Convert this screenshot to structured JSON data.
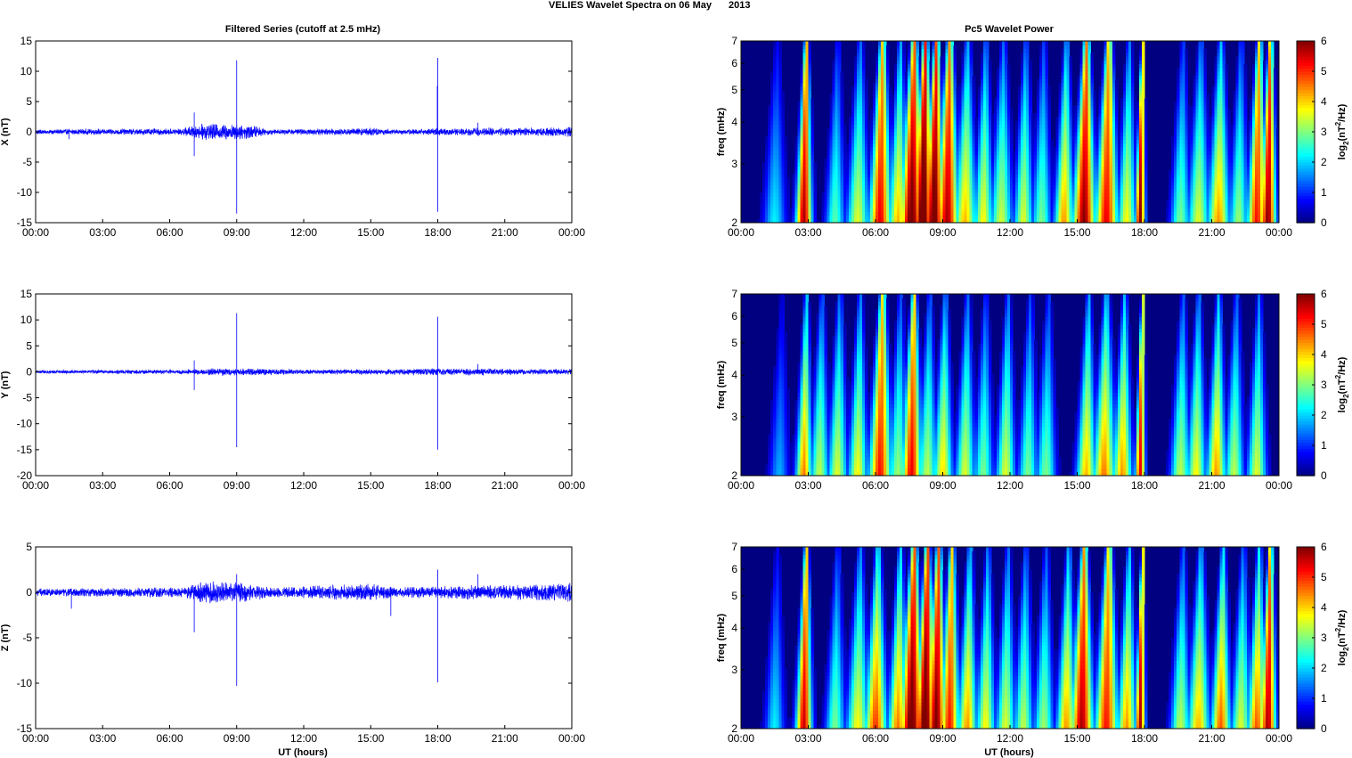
{
  "figure": {
    "title_left": "VELIES Wavelet Spectra on 06 May",
    "title_right": "2013",
    "left_column_title": "Filtered Series (cutoff at 2.5 mHz)",
    "right_column_title": "Pc5 Wavelet Power",
    "xlabel": "UT (hours)",
    "colorbar_label_prefix": "log",
    "colorbar_label_sub": "2",
    "colorbar_label_mid": "(nT",
    "colorbar_label_sup": "2",
    "colorbar_label_suffix": "/Hz)",
    "freq_ylabel": "freq (mHz)"
  },
  "chart_data": [
    {
      "id": "series-x",
      "type": "line",
      "ylabel": "X (nT)",
      "xlim": [
        0,
        24
      ],
      "ylim": [
        -15,
        15
      ],
      "yticks": [
        -15,
        -10,
        -5,
        0,
        5,
        10,
        15
      ],
      "xticks": [
        "00:00",
        "03:00",
        "06:00",
        "09:00",
        "12:00",
        "15:00",
        "18:00",
        "21:00",
        "00:00"
      ],
      "color": "#0000ff",
      "noise_envelope": [
        [
          0,
          0.3
        ],
        [
          6.5,
          0.4
        ],
        [
          7.5,
          1.0
        ],
        [
          9.5,
          0.9
        ],
        [
          10.5,
          0.3
        ],
        [
          14,
          0.4
        ],
        [
          15,
          0.5
        ],
        [
          16,
          0.3
        ],
        [
          19.5,
          0.5
        ],
        [
          22,
          0.5
        ],
        [
          24,
          0.6
        ]
      ],
      "spikes": [
        [
          7.1,
          3.2,
          -4.0
        ],
        [
          9.0,
          11.8,
          -13.5
        ],
        [
          18.0,
          12.2,
          -13.2
        ],
        [
          17.98,
          7.6,
          0
        ],
        [
          19.8,
          1.5,
          -0.5
        ],
        [
          1.5,
          0.5,
          -1.2
        ]
      ]
    },
    {
      "id": "series-y",
      "type": "line",
      "ylabel": "Y (nT)",
      "xlim": [
        0,
        24
      ],
      "ylim": [
        -20,
        15
      ],
      "yticks": [
        -20,
        -15,
        -10,
        -5,
        0,
        5,
        10,
        15
      ],
      "xticks": [
        "00:00",
        "03:00",
        "06:00",
        "09:00",
        "12:00",
        "15:00",
        "18:00",
        "21:00",
        "00:00"
      ],
      "color": "#0000ff",
      "noise_envelope": [
        [
          0,
          0.25
        ],
        [
          6.5,
          0.3
        ],
        [
          8,
          0.5
        ],
        [
          9.5,
          0.5
        ],
        [
          12,
          0.3
        ],
        [
          19.5,
          0.5
        ],
        [
          22,
          0.4
        ],
        [
          24,
          0.4
        ]
      ],
      "spikes": [
        [
          7.1,
          2.2,
          -3.5
        ],
        [
          9.0,
          11.3,
          -14.5
        ],
        [
          18.0,
          10.6,
          -15.0
        ],
        [
          19.8,
          1.5,
          -0.4
        ]
      ]
    },
    {
      "id": "series-z",
      "type": "line",
      "ylabel": "Z (nT)",
      "xlim": [
        0,
        24
      ],
      "ylim": [
        -15,
        5
      ],
      "yticks": [
        -15,
        -10,
        -5,
        0,
        5
      ],
      "xticks": [
        "00:00",
        "03:00",
        "06:00",
        "09:00",
        "12:00",
        "15:00",
        "18:00",
        "21:00",
        "00:00"
      ],
      "color": "#0000ff",
      "noise_envelope": [
        [
          0,
          0.3
        ],
        [
          6.5,
          0.4
        ],
        [
          7.5,
          0.9
        ],
        [
          9.5,
          0.8
        ],
        [
          10.5,
          0.4
        ],
        [
          15,
          0.7
        ],
        [
          16,
          0.4
        ],
        [
          19.5,
          0.6
        ],
        [
          22,
          0.6
        ],
        [
          24,
          0.8
        ]
      ],
      "spikes": [
        [
          7.1,
          0.5,
          -4.4
        ],
        [
          9.0,
          2.0,
          -10.3
        ],
        [
          18.0,
          2.5,
          -9.9
        ],
        [
          1.6,
          0.4,
          -1.8
        ],
        [
          15.9,
          0.6,
          -2.6
        ],
        [
          19.8,
          2.0,
          -0.5
        ]
      ]
    },
    {
      "id": "wavelet-x",
      "type": "heatmap",
      "ylabel": "freq (mHz)",
      "xlim": [
        0,
        24
      ],
      "ylim": [
        2,
        7
      ],
      "yscale": "log",
      "yticks": [
        2,
        3,
        4,
        5,
        6,
        7
      ],
      "xticks": [
        "00:00",
        "03:00",
        "06:00",
        "09:00",
        "12:00",
        "15:00",
        "18:00",
        "21:00",
        "00:00"
      ],
      "colormap": "jet",
      "clim": [
        0,
        6
      ],
      "colorbar_ticks": [
        0,
        1,
        2,
        3,
        4,
        5,
        6
      ],
      "bursts": [
        [
          1.5,
          0.35,
          2.2
        ],
        [
          2.8,
          0.25,
          5.8
        ],
        [
          4.2,
          0.3,
          2.8
        ],
        [
          5.2,
          0.35,
          3.6
        ],
        [
          6.2,
          0.35,
          5.4
        ],
        [
          7.0,
          0.3,
          4.2
        ],
        [
          7.6,
          0.35,
          6.3
        ],
        [
          8.1,
          0.3,
          6.8
        ],
        [
          8.6,
          0.3,
          6.5
        ],
        [
          9.2,
          0.35,
          5.8
        ],
        [
          10.0,
          0.35,
          4.2
        ],
        [
          10.8,
          0.3,
          3.8
        ],
        [
          11.6,
          0.35,
          3.5
        ],
        [
          12.6,
          0.3,
          3.6
        ],
        [
          13.4,
          0.3,
          3.0
        ],
        [
          14.4,
          0.3,
          4.4
        ],
        [
          15.3,
          0.35,
          6.0
        ],
        [
          16.3,
          0.35,
          5.4
        ],
        [
          17.2,
          0.3,
          3.8
        ],
        [
          17.8,
          0.15,
          6.0
        ],
        [
          19.6,
          0.3,
          3.0
        ],
        [
          20.4,
          0.35,
          3.6
        ],
        [
          21.3,
          0.35,
          4.4
        ],
        [
          22.2,
          0.3,
          3.2
        ],
        [
          23.0,
          0.3,
          5.2
        ],
        [
          23.5,
          0.25,
          6.0
        ]
      ]
    },
    {
      "id": "wavelet-y",
      "type": "heatmap",
      "ylabel": "freq (mHz)",
      "xlim": [
        0,
        24
      ],
      "ylim": [
        2,
        7
      ],
      "yscale": "log",
      "yticks": [
        2,
        3,
        4,
        5,
        6,
        7
      ],
      "xticks": [
        "00:00",
        "03:00",
        "06:00",
        "09:00",
        "12:00",
        "15:00",
        "18:00",
        "21:00",
        "00:00"
      ],
      "colormap": "jet",
      "clim": [
        0,
        6
      ],
      "colorbar_ticks": [
        0,
        1,
        2,
        3,
        4,
        5,
        6
      ],
      "bursts": [
        [
          1.7,
          0.3,
          1.8
        ],
        [
          2.8,
          0.25,
          4.6
        ],
        [
          3.5,
          0.3,
          3.4
        ],
        [
          4.3,
          0.3,
          3.6
        ],
        [
          5.2,
          0.3,
          3.8
        ],
        [
          6.2,
          0.35,
          5.2
        ],
        [
          7.0,
          0.3,
          3.2
        ],
        [
          7.6,
          0.3,
          5.4
        ],
        [
          8.3,
          0.3,
          3.4
        ],
        [
          9.0,
          0.3,
          4.0
        ],
        [
          10.0,
          0.3,
          3.6
        ],
        [
          10.8,
          0.3,
          3.0
        ],
        [
          11.8,
          0.3,
          3.6
        ],
        [
          12.8,
          0.3,
          3.0
        ],
        [
          13.6,
          0.3,
          3.0
        ],
        [
          15.4,
          0.3,
          4.2
        ],
        [
          16.2,
          0.35,
          4.6
        ],
        [
          17.0,
          0.3,
          4.4
        ],
        [
          17.8,
          0.15,
          5.4
        ],
        [
          19.6,
          0.3,
          3.4
        ],
        [
          20.3,
          0.3,
          3.8
        ],
        [
          21.2,
          0.3,
          4.4
        ],
        [
          22.0,
          0.3,
          3.4
        ],
        [
          23.0,
          0.3,
          3.6
        ]
      ]
    },
    {
      "id": "wavelet-z",
      "type": "heatmap",
      "ylabel": "freq (mHz)",
      "xlim": [
        0,
        24
      ],
      "ylim": [
        2,
        7
      ],
      "yscale": "log",
      "yticks": [
        2,
        3,
        4,
        5,
        6,
        7
      ],
      "xticks": [
        "00:00",
        "03:00",
        "06:00",
        "09:00",
        "12:00",
        "15:00",
        "18:00",
        "21:00",
        "00:00"
      ],
      "colormap": "jet",
      "clim": [
        0,
        6
      ],
      "colorbar_ticks": [
        0,
        1,
        2,
        3,
        4,
        5,
        6
      ],
      "bursts": [
        [
          1.5,
          0.3,
          2.2
        ],
        [
          2.8,
          0.25,
          5.6
        ],
        [
          4.2,
          0.3,
          3.0
        ],
        [
          5.2,
          0.35,
          3.8
        ],
        [
          6.0,
          0.35,
          5.0
        ],
        [
          7.0,
          0.3,
          4.6
        ],
        [
          7.6,
          0.35,
          6.4
        ],
        [
          8.2,
          0.3,
          6.6
        ],
        [
          8.7,
          0.3,
          6.2
        ],
        [
          9.3,
          0.3,
          5.2
        ],
        [
          10.1,
          0.3,
          4.4
        ],
        [
          10.9,
          0.3,
          3.8
        ],
        [
          11.8,
          0.3,
          3.6
        ],
        [
          12.6,
          0.3,
          3.4
        ],
        [
          13.5,
          0.3,
          3.2
        ],
        [
          14.5,
          0.3,
          4.4
        ],
        [
          15.2,
          0.35,
          5.8
        ],
        [
          16.3,
          0.35,
          5.2
        ],
        [
          17.2,
          0.3,
          4.4
        ],
        [
          17.8,
          0.15,
          5.8
        ],
        [
          19.6,
          0.3,
          3.4
        ],
        [
          20.4,
          0.35,
          4.2
        ],
        [
          21.4,
          0.3,
          4.8
        ],
        [
          22.3,
          0.3,
          3.6
        ],
        [
          23.0,
          0.3,
          4.8
        ],
        [
          23.5,
          0.25,
          5.8
        ]
      ]
    }
  ]
}
